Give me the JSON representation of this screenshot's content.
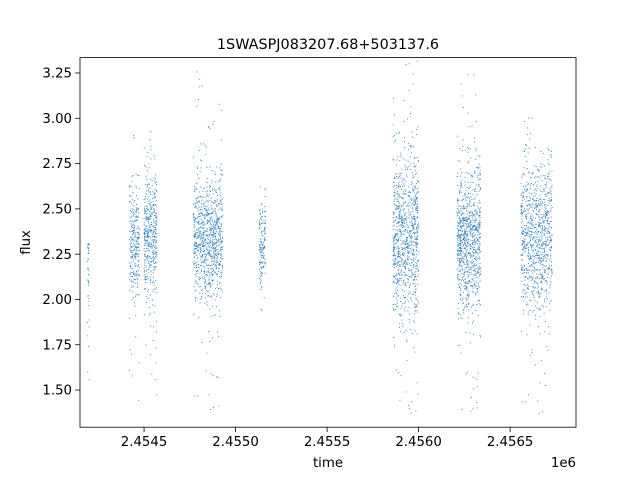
{
  "chart_data": {
    "type": "scatter",
    "title": "1SWASPJ083207.68+503137.6",
    "xlabel": "time",
    "ylabel": "flux",
    "x_offset_label": "1e6",
    "xlim": [
      2454150,
      2456860
    ],
    "ylim": [
      1.295,
      3.335
    ],
    "x_ticks": [
      {
        "value": 2454500,
        "label": "2.4545"
      },
      {
        "value": 2455000,
        "label": "2.4550"
      },
      {
        "value": 2455500,
        "label": "2.4555"
      },
      {
        "value": 2456000,
        "label": "2.4560"
      },
      {
        "value": 2456500,
        "label": "2.4565"
      }
    ],
    "y_ticks": [
      {
        "value": 1.5,
        "label": "1.50"
      },
      {
        "value": 1.75,
        "label": "1.75"
      },
      {
        "value": 2.0,
        "label": "2.00"
      },
      {
        "value": 2.25,
        "label": "2.25"
      },
      {
        "value": 2.5,
        "label": "2.50"
      },
      {
        "value": 2.75,
        "label": "2.75"
      },
      {
        "value": 3.0,
        "label": "3.00"
      },
      {
        "value": 3.25,
        "label": "3.25"
      }
    ],
    "grid": false,
    "legend": "none",
    "marker_color": "#1f77b4",
    "point_clusters": [
      {
        "x_start": 2454190,
        "x_end": 2454200,
        "y_center": 2.08,
        "y_spread": 0.25,
        "y_min": 1.49,
        "y_max": 2.32,
        "n": 40
      },
      {
        "x_start": 2454420,
        "x_end": 2454475,
        "y_center": 2.32,
        "y_spread": 0.15,
        "y_min": 1.4,
        "y_max": 3.08,
        "n": 260
      },
      {
        "x_start": 2454500,
        "x_end": 2454570,
        "y_center": 2.35,
        "y_spread": 0.17,
        "y_min": 1.37,
        "y_max": 2.93,
        "n": 420
      },
      {
        "x_start": 2454770,
        "x_end": 2454930,
        "y_center": 2.33,
        "y_spread": 0.16,
        "y_min": 1.37,
        "y_max": 3.3,
        "n": 900
      },
      {
        "x_start": 2455130,
        "x_end": 2455165,
        "y_center": 2.31,
        "y_spread": 0.12,
        "y_min": 1.88,
        "y_max": 2.78,
        "n": 150
      },
      {
        "x_start": 2455860,
        "x_end": 2456000,
        "y_center": 2.35,
        "y_spread": 0.22,
        "y_min": 1.34,
        "y_max": 3.32,
        "n": 900
      },
      {
        "x_start": 2456210,
        "x_end": 2456340,
        "y_center": 2.33,
        "y_spread": 0.2,
        "y_min": 1.36,
        "y_max": 3.3,
        "n": 900
      },
      {
        "x_start": 2456560,
        "x_end": 2456730,
        "y_center": 2.34,
        "y_spread": 0.2,
        "y_min": 1.35,
        "y_max": 3.02,
        "n": 900
      }
    ]
  }
}
